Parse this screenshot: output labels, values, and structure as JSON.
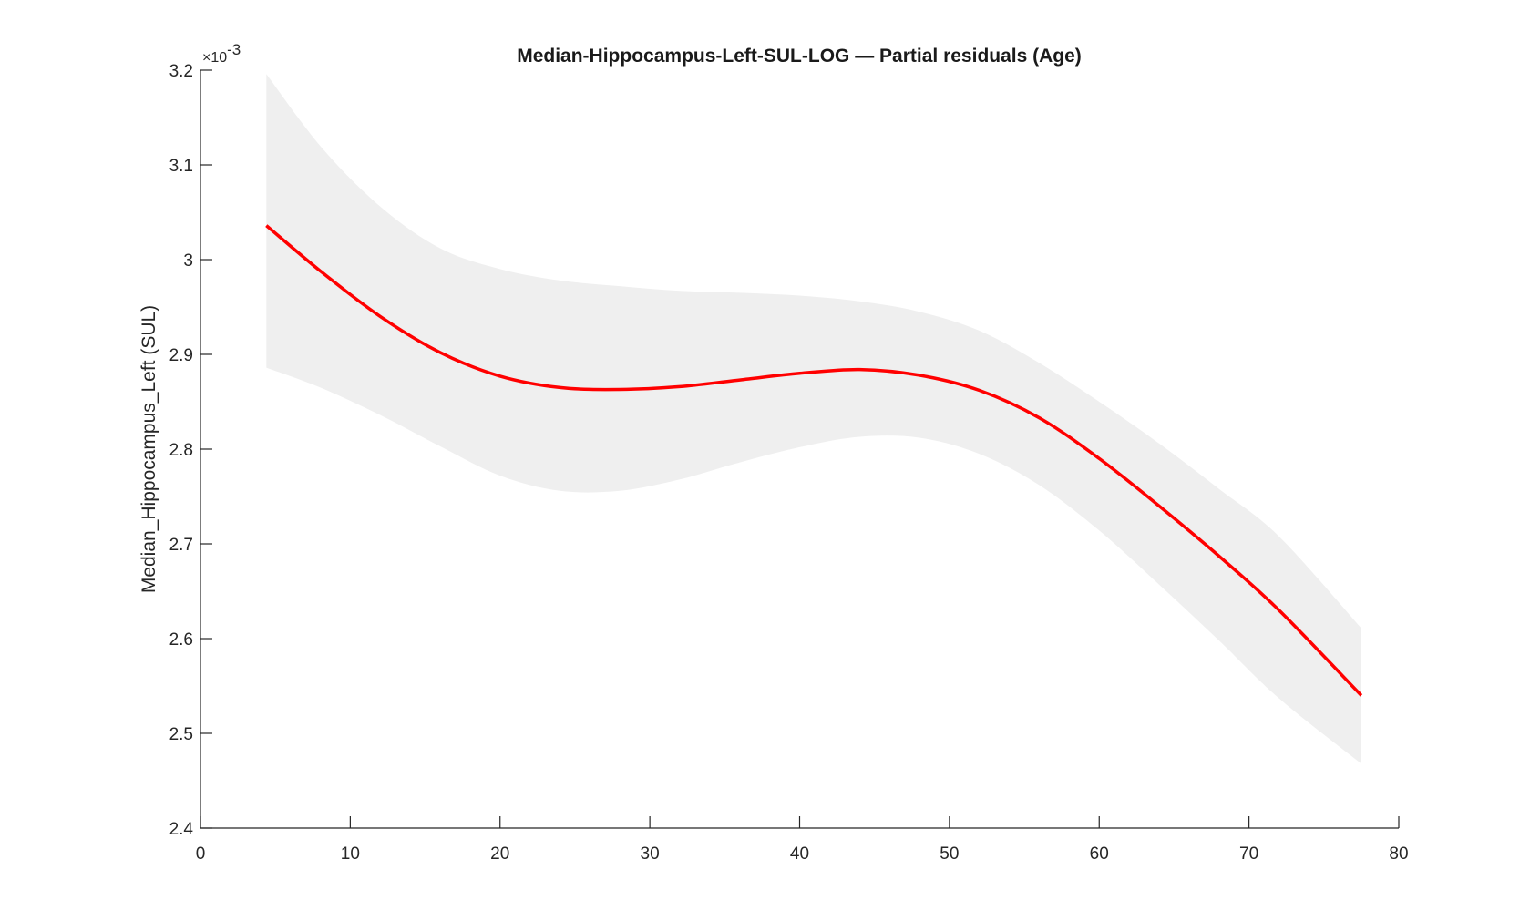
{
  "chart_data": {
    "type": "line",
    "title": "Median-Hippocampus-Left-SUL-LOG — Partial residuals (Age)",
    "xlabel": "",
    "ylabel": "Median_Hippocampus_Left (SUL)",
    "y_multiplier": "×10",
    "y_multiplier_exponent": "-3",
    "xlim": [
      0,
      80
    ],
    "ylim": [
      2.4,
      3.2
    ],
    "x_ticks": [
      0,
      10,
      20,
      30,
      40,
      50,
      60,
      70,
      80
    ],
    "x_tick_labels": [
      "0",
      "10",
      "20",
      "30",
      "40",
      "50",
      "60",
      "70",
      "80"
    ],
    "y_ticks": [
      2.4,
      2.5,
      2.6,
      2.7,
      2.8,
      2.9,
      3.0,
      3.1,
      3.2
    ],
    "y_tick_labels": [
      "2.4",
      "2.5",
      "2.6",
      "2.7",
      "2.8",
      "2.9",
      "3",
      "3.1",
      "3.2"
    ],
    "grid": false,
    "colors": {
      "line": "#ff0000",
      "band": "#efefef",
      "axis": "#262626"
    },
    "series": [
      {
        "x": [
          4.4,
          8,
          12,
          16,
          20,
          24,
          28,
          32,
          36,
          40,
          44,
          48,
          52,
          56,
          60,
          64,
          68,
          72,
          77.5
        ],
        "y": [
          3.036,
          2.988,
          2.94,
          2.902,
          2.877,
          2.865,
          2.863,
          2.866,
          2.873,
          2.88,
          2.884,
          2.878,
          2.862,
          2.833,
          2.79,
          2.74,
          2.687,
          2.63,
          2.54
        ],
        "lower": [
          2.886,
          2.865,
          2.836,
          2.803,
          2.772,
          2.756,
          2.756,
          2.768,
          2.786,
          2.802,
          2.813,
          2.812,
          2.795,
          2.762,
          2.714,
          2.657,
          2.598,
          2.537,
          2.468
        ],
        "upper": [
          3.196,
          3.12,
          3.056,
          3.012,
          2.99,
          2.978,
          2.972,
          2.967,
          2.965,
          2.962,
          2.956,
          2.945,
          2.925,
          2.891,
          2.85,
          2.806,
          2.758,
          2.708,
          2.611
        ]
      }
    ]
  }
}
